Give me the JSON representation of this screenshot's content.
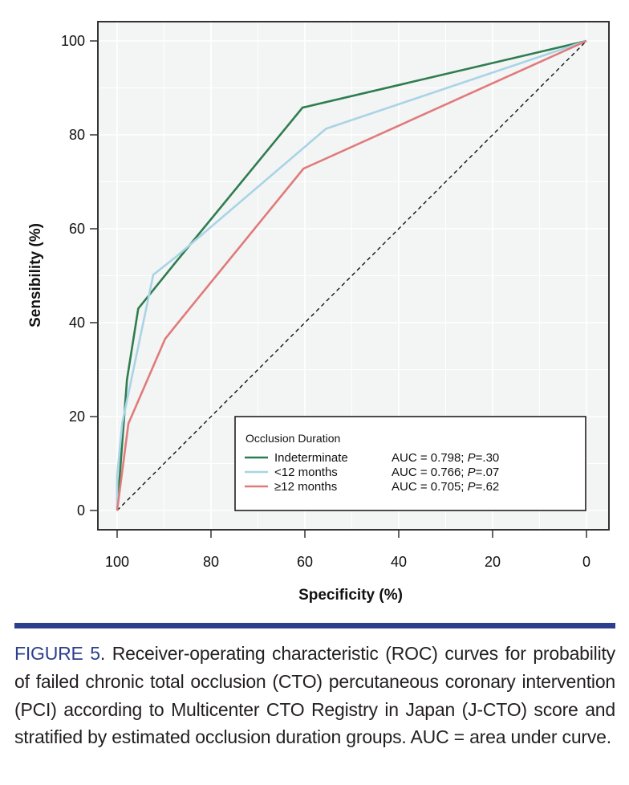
{
  "chart_data": {
    "type": "line",
    "xlabel": "Specificity (%)",
    "ylabel": "Sensibility (%)",
    "xlim": [
      100,
      0
    ],
    "ylim": [
      0,
      100
    ],
    "x_reversed": true,
    "xticks": [
      100,
      80,
      60,
      40,
      20,
      0
    ],
    "yticks": [
      0,
      20,
      40,
      60,
      80,
      100
    ],
    "grid": true,
    "legend_position": "bottom-right",
    "legend_title": "Occlusion Duration",
    "series": [
      {
        "name": "Indeterminate",
        "stat": "AUC = 0.798; ",
        "p_label": "P",
        "p_value": "=.30",
        "color": "#2e7d4f",
        "x": [
          100,
          97.9,
          95.5,
          87.5,
          60.5,
          0
        ],
        "y": [
          0,
          27.9,
          43,
          52.9,
          85.8,
          100
        ]
      },
      {
        "name": "<12 months",
        "stat": "AUC = 0.766; ",
        "p_label": "P",
        "p_value": "=.07",
        "color": "#a8d4e6",
        "x": [
          100,
          100,
          98.9,
          92.3,
          87.5,
          55.5,
          0
        ],
        "y": [
          0,
          7.4,
          18.7,
          50.2,
          54,
          81.3,
          100
        ]
      },
      {
        "name": "≥12 months",
        "stat": "AUC = 0.705; ",
        "p_label": "P",
        "p_value": "=.62",
        "color": "#e07b7b",
        "x": [
          100,
          97.6,
          89.8,
          87.5,
          60.3,
          0
        ],
        "y": [
          0,
          18.5,
          36.5,
          39.4,
          72.8,
          100
        ]
      }
    ],
    "reference_line": {
      "x": [
        100,
        0
      ],
      "y": [
        0,
        100
      ],
      "color": "#000000",
      "style": "dashed"
    }
  },
  "caption": {
    "label": "FIGURE 5",
    "text": ". Receiver-operating characteristic (ROC) curves for probability of failed chronic total occlusion (CTO) percutaneous coronary intervention (PCI) according to Multicenter CTO Registry in Japan (J-CTO) score and stratified by estimated occlusion duration groups. AUC = area under curve."
  },
  "colors": {
    "panel_bg": "#f3f4f4",
    "rule": "#2b3f8c"
  }
}
